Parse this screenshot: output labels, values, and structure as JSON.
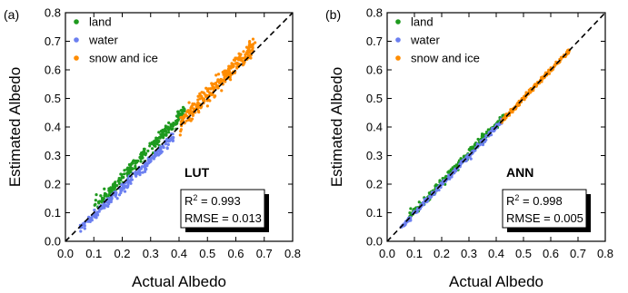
{
  "chart_data": [
    {
      "panel_label": "(a)",
      "type": "scatter",
      "method_label": "LUT",
      "xlabel": "Actual Albedo",
      "ylabel": "Estimated Albedo",
      "xlim": [
        0.0,
        0.8
      ],
      "ylim": [
        0.0,
        0.8
      ],
      "xticks": [
        "0.0",
        "0.1",
        "0.2",
        "0.3",
        "0.4",
        "0.5",
        "0.6",
        "0.7",
        "0.8"
      ],
      "yticks": [
        "0.0",
        "0.1",
        "0.2",
        "0.3",
        "0.4",
        "0.5",
        "0.6",
        "0.7",
        "0.8"
      ],
      "reference_line": "1:1 dashed",
      "legend_position": "top-left",
      "stats": {
        "r2_label": "R",
        "r2_sup": "2",
        "r2_value": " = 0.993",
        "rmse": "RMSE = 0.013"
      },
      "series": [
        {
          "name": "land",
          "color": "#1e9a1e",
          "segments": [
            {
              "x0": 0.1,
              "x1": 0.42,
              "n": 240,
              "slope": 1.05,
              "bias": 0.012,
              "spread": 0.012
            }
          ]
        },
        {
          "name": "water",
          "color": "#6b7ff0",
          "segments": [
            {
              "x0": 0.05,
              "x1": 0.38,
              "n": 220,
              "slope": 0.98,
              "bias": -0.008,
              "spread": 0.009
            }
          ]
        },
        {
          "name": "snow and ice",
          "color": "#ff8c00",
          "segments": [
            {
              "x0": 0.4,
              "x1": 0.67,
              "n": 260,
              "slope": 1.03,
              "bias": 0.0,
              "spread": 0.016
            }
          ]
        }
      ]
    },
    {
      "panel_label": "(b)",
      "type": "scatter",
      "method_label": "ANN",
      "xlabel": "Actual Albedo",
      "ylabel": "Estimated Albedo",
      "xlim": [
        0.0,
        0.8
      ],
      "ylim": [
        0.0,
        0.8
      ],
      "xticks": [
        "0.0",
        "0.1",
        "0.2",
        "0.3",
        "0.4",
        "0.5",
        "0.6",
        "0.7",
        "0.8"
      ],
      "yticks": [
        "0.0",
        "0.1",
        "0.2",
        "0.3",
        "0.4",
        "0.5",
        "0.6",
        "0.7",
        "0.8"
      ],
      "reference_line": "1:1 dashed",
      "legend_position": "top-left",
      "stats": {
        "r2_label": "R",
        "r2_sup": "2",
        "r2_value": " = 0.998",
        "rmse": "RMSE = 0.005"
      },
      "series": [
        {
          "name": "land",
          "color": "#1e9a1e",
          "segments": [
            {
              "x0": 0.08,
              "x1": 0.43,
              "n": 240,
              "slope": 1.01,
              "bias": 0.004,
              "spread": 0.007
            }
          ]
        },
        {
          "name": "water",
          "color": "#6b7ff0",
          "segments": [
            {
              "x0": 0.05,
              "x1": 0.42,
              "n": 220,
              "slope": 1.0,
              "bias": -0.002,
              "spread": 0.005
            }
          ]
        },
        {
          "name": "snow and ice",
          "color": "#ff8c00",
          "segments": [
            {
              "x0": 0.42,
              "x1": 0.67,
              "n": 240,
              "slope": 1.0,
              "bias": 0.0,
              "spread": 0.004
            }
          ]
        }
      ]
    }
  ]
}
